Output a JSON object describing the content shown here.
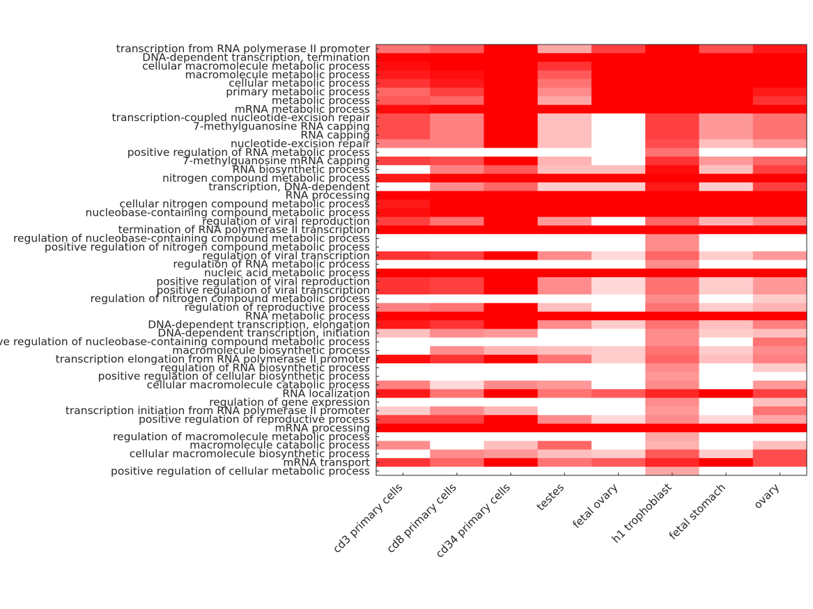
{
  "chart_data": {
    "type": "heatmap",
    "columns": [
      "cd3 primary cells",
      "cd8 primary cells",
      "cd34 primary cells",
      "testes",
      "fetal ovary",
      "h1 trophoblast",
      "fetal stomach",
      "ovary"
    ],
    "rows": [
      "transcription from RNA polymerase II promoter",
      "DNA-dependent transcription, termination",
      "cellular macromolecule metabolic process",
      "macromolecule metabolic process",
      "cellular metabolic process",
      "primary metabolic process",
      "metabolic process",
      "mRNA metabolic process",
      "transcription-coupled nucleotide-excision repair",
      "7-methylguanosine RNA capping",
      "RNA capping",
      "nucleotide-excision repair",
      "positive regulation of RNA metabolic process",
      "7-methylguanosine mRNA capping",
      "RNA biosynthetic process",
      "nitrogen compound metabolic process",
      "transcription, DNA-dependent",
      "RNA processing",
      "cellular nitrogen compound metabolic process",
      "nucleobase-containing compound metabolic process",
      "regulation of viral reproduction",
      "termination of RNA polymerase II transcription",
      "regulation of nucleobase-containing compound metabolic process",
      "positive regulation of nitrogen compound metabolic process",
      "regulation of viral transcription",
      "regulation of RNA metabolic process",
      "nucleic acid metabolic process",
      "positive regulation of viral reproduction",
      "positive regulation of viral transcription",
      "regulation of nitrogen compound metabolic process",
      "regulation of reproductive process",
      "RNA metabolic process",
      "DNA-dependent transcription, elongation",
      "DNA-dependent transcription, initiation",
      "positive regulation of nucleobase-containing compound metabolic process",
      "macromolecule biosynthetic process",
      "transcription elongation from RNA polymerase II promoter",
      "regulation of RNA biosynthetic process",
      "positive regulation of cellular biosynthetic process",
      "cellular macromolecule catabolic process",
      "RNA localization",
      "regulation of gene expression",
      "transcription initiation from RNA polymerase II promoter",
      "positive regulation of reproductive process",
      "mRNA processing",
      "regulation of macromolecule metabolic process",
      "macromolecule catabolic process",
      "cellular macromolecule biosynthetic process",
      "mRNA transport",
      "positive regulation of cellular metabolic process"
    ],
    "values": [
      [
        0.55,
        0.65,
        1.0,
        0.35,
        0.75,
        1.0,
        0.7,
        0.9
      ],
      [
        1.0,
        1.0,
        1.0,
        1.0,
        1.0,
        1.0,
        1.0,
        1.0
      ],
      [
        0.95,
        1.0,
        1.0,
        0.8,
        1.0,
        1.0,
        1.0,
        1.0
      ],
      [
        0.9,
        0.95,
        1.0,
        0.65,
        1.0,
        1.0,
        1.0,
        1.0
      ],
      [
        0.8,
        0.9,
        1.0,
        0.55,
        1.0,
        1.0,
        1.0,
        1.0
      ],
      [
        0.6,
        0.75,
        1.0,
        0.45,
        1.0,
        1.0,
        1.0,
        0.9
      ],
      [
        0.65,
        0.6,
        1.0,
        0.35,
        1.0,
        1.0,
        1.0,
        0.8
      ],
      [
        0.95,
        1.0,
        1.0,
        1.0,
        1.0,
        1.0,
        1.0,
        1.0
      ],
      [
        0.7,
        0.5,
        1.0,
        0.25,
        0.0,
        0.75,
        0.4,
        0.55
      ],
      [
        0.7,
        0.5,
        1.0,
        0.25,
        0.0,
        0.75,
        0.4,
        0.55
      ],
      [
        0.7,
        0.5,
        1.0,
        0.25,
        0.0,
        0.75,
        0.4,
        0.55
      ],
      [
        0.5,
        0.5,
        1.0,
        0.25,
        0.0,
        0.7,
        0.25,
        0.4
      ],
      [
        0.0,
        0.0,
        0.0,
        0.0,
        0.0,
        0.55,
        0.0,
        0.0
      ],
      [
        0.75,
        0.7,
        1.0,
        0.3,
        0.0,
        0.8,
        0.4,
        0.6
      ],
      [
        0.0,
        0.5,
        0.65,
        0.25,
        0.25,
        0.95,
        0.25,
        0.75
      ],
      [
        0.9,
        1.0,
        1.0,
        1.0,
        1.0,
        1.0,
        1.0,
        1.0
      ],
      [
        0.0,
        0.45,
        0.6,
        0.2,
        0.2,
        0.9,
        0.2,
        0.75
      ],
      [
        1.0,
        1.0,
        1.0,
        1.0,
        1.0,
        1.0,
        1.0,
        1.0
      ],
      [
        0.9,
        1.0,
        1.0,
        1.0,
        1.0,
        1.0,
        1.0,
        1.0
      ],
      [
        0.95,
        1.0,
        1.0,
        1.0,
        1.0,
        1.0,
        1.0,
        1.0
      ],
      [
        0.75,
        0.55,
        1.0,
        0.4,
        0.0,
        0.6,
        0.3,
        0.45
      ],
      [
        1.0,
        1.0,
        1.0,
        1.0,
        1.0,
        1.0,
        1.0,
        1.0
      ],
      [
        0.0,
        0.0,
        0.0,
        0.0,
        0.0,
        0.45,
        0.0,
        0.0
      ],
      [
        0.0,
        0.0,
        0.0,
        0.0,
        0.0,
        0.45,
        0.0,
        0.0
      ],
      [
        0.8,
        0.75,
        1.0,
        0.45,
        0.15,
        0.6,
        0.2,
        0.4
      ],
      [
        0.0,
        0.0,
        0.0,
        0.0,
        0.0,
        0.45,
        0.0,
        0.0
      ],
      [
        1.0,
        1.0,
        1.0,
        1.0,
        1.0,
        1.0,
        1.0,
        1.0
      ],
      [
        0.8,
        0.75,
        1.0,
        0.45,
        0.15,
        0.55,
        0.2,
        0.4
      ],
      [
        0.8,
        0.75,
        1.0,
        0.45,
        0.15,
        0.55,
        0.2,
        0.4
      ],
      [
        0.0,
        0.0,
        0.0,
        0.0,
        0.0,
        0.45,
        0.0,
        0.2
      ],
      [
        0.5,
        0.55,
        1.0,
        0.25,
        0.0,
        0.55,
        0.2,
        0.3
      ],
      [
        1.0,
        1.0,
        1.0,
        1.0,
        1.0,
        1.0,
        1.0,
        1.0
      ],
      [
        0.9,
        0.8,
        1.0,
        0.45,
        0.2,
        0.55,
        0.25,
        0.5
      ],
      [
        0.25,
        0.45,
        0.4,
        0.0,
        0.0,
        0.45,
        0.2,
        0.25
      ],
      [
        0.0,
        0.0,
        0.0,
        0.0,
        0.0,
        0.45,
        0.0,
        0.55
      ],
      [
        0.0,
        0.45,
        0.3,
        0.25,
        0.2,
        0.55,
        0.2,
        0.45
      ],
      [
        0.95,
        0.8,
        1.0,
        0.55,
        0.2,
        0.6,
        0.25,
        0.5
      ],
      [
        0.0,
        0.0,
        0.0,
        0.0,
        0.0,
        0.45,
        0.0,
        0.2
      ],
      [
        0.0,
        0.0,
        0.0,
        0.0,
        0.0,
        0.4,
        0.0,
        0.0
      ],
      [
        0.5,
        0.15,
        0.45,
        0.4,
        0.0,
        0.45,
        0.0,
        0.4
      ],
      [
        0.9,
        0.55,
        1.0,
        0.55,
        0.65,
        0.85,
        1.0,
        0.75
      ],
      [
        0.0,
        0.0,
        0.0,
        0.0,
        0.0,
        0.45,
        0.0,
        0.25
      ],
      [
        0.2,
        0.45,
        0.3,
        0.0,
        0.0,
        0.4,
        0.0,
        0.55
      ],
      [
        0.75,
        0.75,
        1.0,
        0.45,
        0.15,
        0.45,
        0.15,
        0.35
      ],
      [
        1.0,
        1.0,
        1.0,
        1.0,
        1.0,
        1.0,
        1.0,
        1.0
      ],
      [
        0.0,
        0.0,
        0.0,
        0.0,
        0.0,
        0.35,
        0.0,
        0.0
      ],
      [
        0.45,
        0.0,
        0.25,
        0.6,
        0.0,
        0.3,
        0.0,
        0.25
      ],
      [
        0.0,
        0.45,
        0.4,
        0.25,
        0.2,
        0.65,
        0.2,
        0.7
      ],
      [
        0.8,
        0.6,
        1.0,
        0.55,
        0.65,
        0.85,
        1.0,
        0.7
      ],
      [
        0.0,
        0.0,
        0.0,
        0.0,
        0.0,
        0.35,
        0.0,
        0.0
      ]
    ],
    "scale": "white-to-red",
    "colors": {
      "low": "#ffffff",
      "high": "#ff0000",
      "axis": "#262626",
      "text": "#262626"
    },
    "grid": false,
    "title": "",
    "xlabel": "",
    "ylabel": ""
  }
}
